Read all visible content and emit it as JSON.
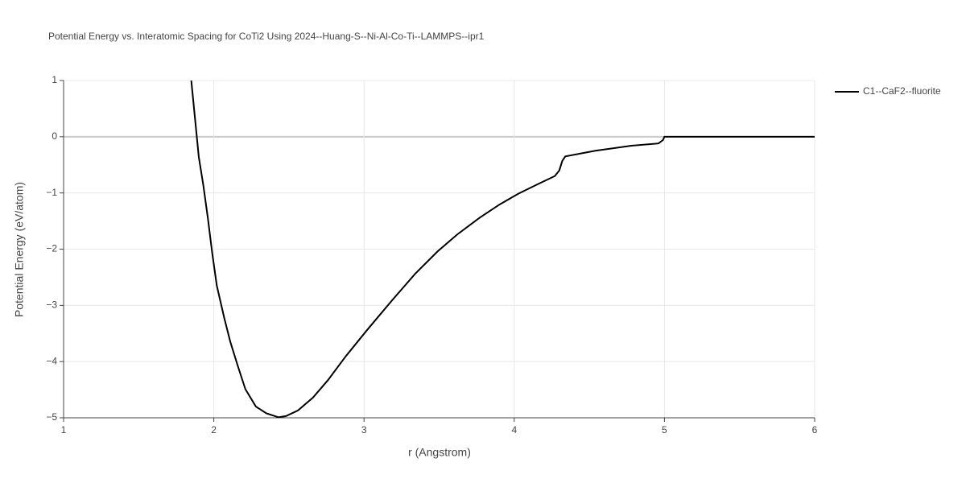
{
  "chart_data": {
    "type": "line",
    "title": "Potential Energy vs. Interatomic Spacing for CoTi2 Using 2024--Huang-S--Ni-Al-Co-Ti--LAMMPS--ipr1",
    "x_label": "r (Angstrom)",
    "y_label": "Potential Energy (eV/atom)",
    "xlim": [
      1,
      6
    ],
    "ylim": [
      -5,
      1
    ],
    "xticks": [
      1,
      2,
      3,
      4,
      5,
      6
    ],
    "yticks": [
      {
        "value": -5,
        "label": "−5"
      },
      {
        "value": -4,
        "label": "−4"
      },
      {
        "value": -3,
        "label": "−3"
      },
      {
        "value": -2,
        "label": "−2"
      },
      {
        "value": -1,
        "label": "−1"
      },
      0,
      1
    ],
    "grid": true,
    "legend_position": "right",
    "x": [
      1.85,
      1.9,
      1.93,
      1.96,
      1.99,
      2.02,
      2.07,
      2.11,
      2.16,
      2.21,
      2.28,
      2.35,
      2.43,
      2.48,
      2.56,
      2.66,
      2.76,
      2.88,
      3.02,
      3.19,
      3.34,
      3.49,
      3.62,
      3.77,
      3.9,
      4.03,
      4.16,
      4.27,
      4.3,
      4.32,
      4.34,
      4.54,
      4.78,
      4.96,
      4.99,
      5.0,
      6.0
    ],
    "series": [
      {
        "name": "C1--CaF2--fluorite",
        "color": "#000000",
        "values": [
          1,
          -0.36,
          -0.86,
          -1.44,
          -2.08,
          -2.65,
          -3.23,
          -3.65,
          -4.08,
          -4.49,
          -4.8,
          -4.92,
          -4.99,
          -4.97,
          -4.87,
          -4.64,
          -4.33,
          -3.9,
          -3.44,
          -2.9,
          -2.44,
          -2.04,
          -1.74,
          -1.44,
          -1.21,
          -1.01,
          -0.84,
          -0.7,
          -0.6,
          -0.43,
          -0.35,
          -0.25,
          -0.16,
          -0.12,
          -0.06,
          0,
          0
        ]
      }
    ]
  }
}
